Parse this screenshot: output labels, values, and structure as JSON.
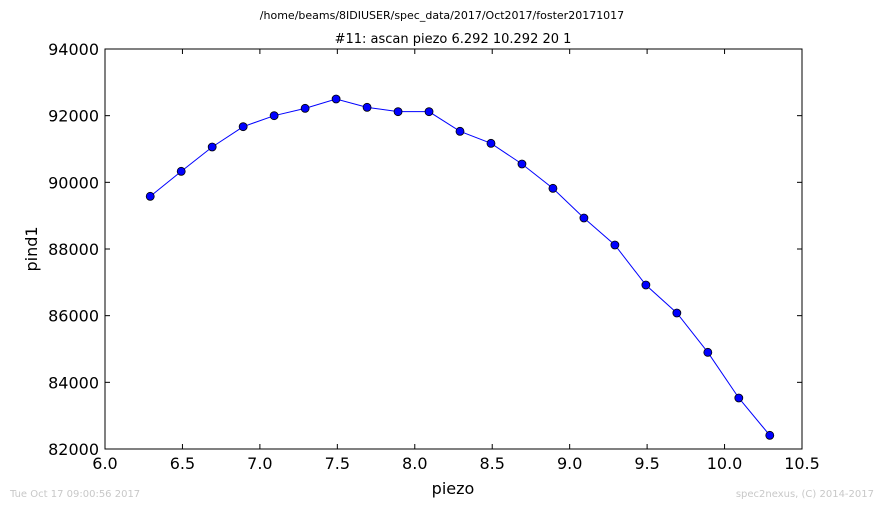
{
  "chart_data": {
    "type": "line",
    "suptitle": "/home/beams/8IDIUSER/spec_data/2017/Oct2017/foster20171017",
    "title": "#11: ascan  piezo 6.292 10.292  20 1",
    "xlabel": "piezo",
    "ylabel": "pind1",
    "xlim": [
      6.0,
      10.5
    ],
    "ylim": [
      82000,
      94000
    ],
    "xticks": [
      "6.0",
      "6.5",
      "7.0",
      "7.5",
      "8.0",
      "8.5",
      "9.0",
      "9.5",
      "10.0",
      "10.5"
    ],
    "yticks": [
      "82000",
      "84000",
      "86000",
      "88000",
      "90000",
      "92000",
      "94000"
    ],
    "grid": false,
    "legend": "none",
    "series": [
      {
        "color": "#0000ff",
        "marker": "circle",
        "x": [
          6.292,
          6.492,
          6.692,
          6.892,
          7.092,
          7.292,
          7.492,
          7.692,
          7.892,
          8.092,
          8.292,
          8.492,
          8.692,
          8.892,
          9.092,
          9.292,
          9.492,
          9.692,
          9.892,
          10.092,
          10.292
        ],
        "y": [
          89580,
          90330,
          91060,
          91670,
          92000,
          92220,
          92500,
          92250,
          92120,
          92120,
          91530,
          91170,
          90550,
          89820,
          88930,
          88120,
          86920,
          86080,
          84900,
          83530,
          82410
        ]
      }
    ]
  },
  "footer": {
    "timestamp": "Tue Oct 17 09:00:56 2017",
    "credit": "spec2nexus, (C) 2014-2017"
  }
}
